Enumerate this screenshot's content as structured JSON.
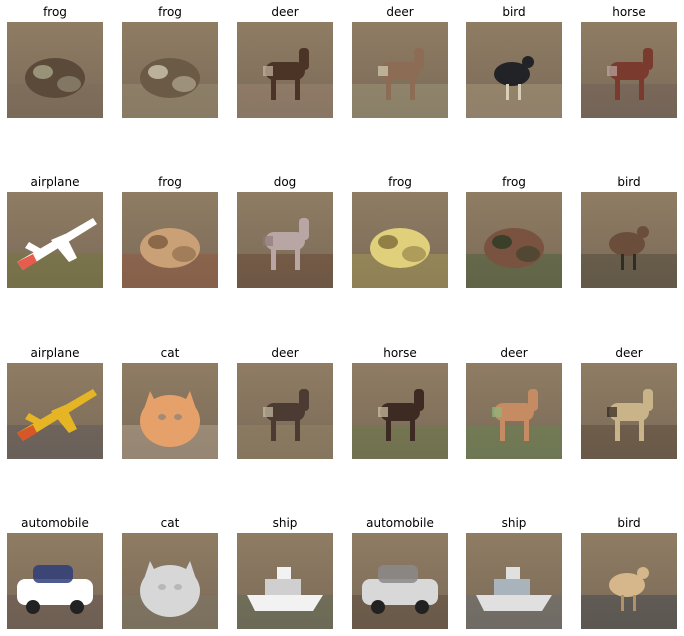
{
  "grid": {
    "cells": [
      {
        "label": "frog",
        "colors": [
          "#7a6a58",
          "#8f7c63",
          "#5b4a3a",
          "#a7a48a"
        ],
        "shape": "blob"
      },
      {
        "label": "frog",
        "colors": [
          "#a39a7a",
          "#b2a68a",
          "#6a5a46",
          "#cfc7b0"
        ],
        "shape": "blob"
      },
      {
        "label": "deer",
        "colors": [
          "#a58d78",
          "#b59c86",
          "#4b3426",
          "#c6b8a4"
        ],
        "shape": "animal"
      },
      {
        "label": "deer",
        "colors": [
          "#a8a886",
          "#b4b293",
          "#8d6c55",
          "#d0cfb4"
        ],
        "shape": "animal"
      },
      {
        "label": "bird",
        "colors": [
          "#b9a98a",
          "#c7b595",
          "#222326",
          "#d7cfb8"
        ],
        "shape": "bird"
      },
      {
        "label": "horse",
        "colors": [
          "#6b5a56",
          "#8b7a75",
          "#7a3b2e",
          "#b8aba5"
        ],
        "shape": "animal"
      },
      {
        "label": "airplane",
        "colors": [
          "#6e7a2e",
          "#94972f",
          "#ffffff",
          "#e34a3a"
        ],
        "shape": "airplane"
      },
      {
        "label": "frog",
        "colors": [
          "#9b4c31",
          "#b7603f",
          "#caa076",
          "#7a5a3c"
        ],
        "shape": "blob"
      },
      {
        "label": "dog",
        "colors": [
          "#5a3322",
          "#6d3f2b",
          "#b7a6a3",
          "#8f7b79"
        ],
        "shape": "animal"
      },
      {
        "label": "frog",
        "colors": [
          "#b6ab52",
          "#d6c86b",
          "#e0cf7b",
          "#7c6c3a"
        ],
        "shape": "blob"
      },
      {
        "label": "frog",
        "colors": [
          "#355a2c",
          "#4f7a3a",
          "#7a5240",
          "#2a3b24"
        ],
        "shape": "blob"
      },
      {
        "label": "bird",
        "colors": [
          "#3a3a2a",
          "#4d4a36",
          "#6b4d3b",
          "#2e2d23"
        ],
        "shape": "bird"
      },
      {
        "label": "airplane",
        "colors": [
          "#4a4e5c",
          "#5d6372",
          "#e6b526",
          "#d64c2a"
        ],
        "shape": "airplane"
      },
      {
        "label": "cat",
        "colors": [
          "#c9b9a7",
          "#d9c6b2",
          "#e6a16b",
          "#a58a76"
        ],
        "shape": "cat"
      },
      {
        "label": "deer",
        "colors": [
          "#9b8c69",
          "#b0a07c",
          "#4b3b33",
          "#c6bfa4"
        ],
        "shape": "animal"
      },
      {
        "label": "horse",
        "colors": [
          "#5f7d40",
          "#6f8f4a",
          "#3d2a22",
          "#d2c3a6"
        ],
        "shape": "animal"
      },
      {
        "label": "deer",
        "colors": [
          "#5a8f4a",
          "#6aa25a",
          "#c58b62",
          "#8ab97a"
        ],
        "shape": "animal"
      },
      {
        "label": "deer",
        "colors": [
          "#4a3a2a",
          "#6b563e",
          "#c9b48a",
          "#2e241c"
        ],
        "shape": "animal"
      },
      {
        "label": "automobile",
        "colors": [
          "#5a4a4a",
          "#6e5b5b",
          "#ffffff",
          "#2f3e7a"
        ],
        "shape": "car"
      },
      {
        "label": "cat",
        "colors": [
          "#7a7a6a",
          "#8c8c7c",
          "#d7d7d7",
          "#b7b7b7"
        ],
        "shape": "cat"
      },
      {
        "label": "ship",
        "colors": [
          "#4f6a54",
          "#5f7c63",
          "#f2f2f2",
          "#cfcfcf"
        ],
        "shape": "ship"
      },
      {
        "label": "automobile",
        "colors": [
          "#4a3a2a",
          "#5c4a38",
          "#d8d8d8",
          "#8a8a8a"
        ],
        "shape": "car"
      },
      {
        "label": "ship",
        "colors": [
          "#5d6d7a",
          "#6f7f8c",
          "#e0e0e0",
          "#a9b3bb"
        ],
        "shape": "ship"
      },
      {
        "label": "bird",
        "colors": [
          "#233446",
          "#2c4155",
          "#d5b78b",
          "#b39168"
        ],
        "shape": "bird"
      }
    ]
  }
}
